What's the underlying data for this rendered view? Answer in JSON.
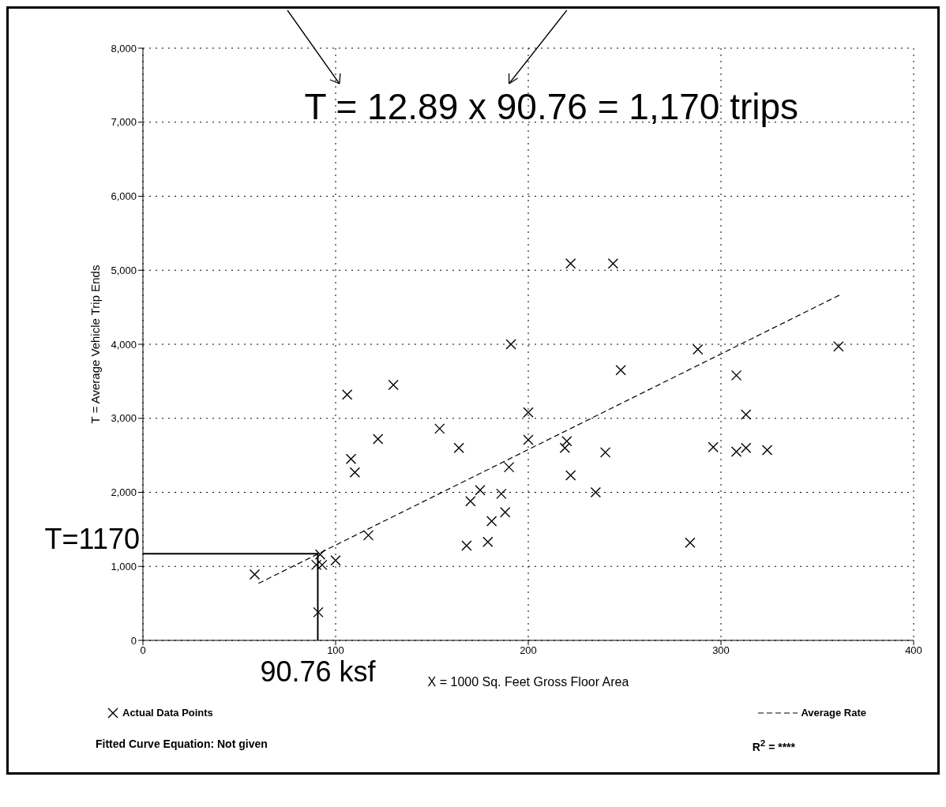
{
  "chart_data": {
    "type": "scatter",
    "xlabel": "X = 1000 Sq. Feet Gross Floor Area",
    "ylabel": "T = Average Vehicle Trip Ends",
    "xlim": [
      0,
      400
    ],
    "xticks": [
      0,
      100,
      200,
      300,
      400
    ],
    "ylim": [
      0,
      8000
    ],
    "yticks": [
      0,
      {
        "value": 1000,
        "label": "1,000"
      },
      {
        "value": 2000,
        "label": "2,000"
      },
      {
        "value": 3000,
        "label": "3,000"
      },
      {
        "value": 4000,
        "label": "4,000"
      },
      {
        "value": 5000,
        "label": "5,000"
      },
      {
        "value": 6000,
        "label": "6,000"
      },
      {
        "value": 7000,
        "label": "7,000"
      },
      {
        "value": 8000,
        "label": "8,000"
      }
    ],
    "grid": true,
    "legend": "bottom",
    "marker": "cross",
    "series": [
      {
        "name": "Actual Data Points",
        "color": "#000000",
        "x": [
          191,
          130,
          106,
          154,
          122,
          164,
          108,
          110,
          190,
          175,
          186,
          170,
          188,
          181,
          179,
          168,
          117,
          100,
          92,
          90,
          93,
          58,
          91,
          222,
          244,
          288,
          248,
          308,
          200,
          313,
          200,
          220,
          219,
          240,
          296,
          308,
          313,
          324,
          222,
          235,
          284,
          361
        ],
        "values": [
          4000,
          3450,
          3320,
          2860,
          2720,
          2600,
          2450,
          2270,
          2340,
          2030,
          1980,
          1880,
          1730,
          1610,
          1330,
          1280,
          1420,
          1080,
          1160,
          1020,
          1020,
          890,
          380,
          5090,
          5090,
          3930,
          3650,
          3580,
          3080,
          3050,
          2710,
          2690,
          2600,
          2540,
          2610,
          2550,
          2600,
          2570,
          2230,
          2000,
          1320,
          3970
        ]
      },
      {
        "name": "Average Rate",
        "type": "line",
        "color": "#000000",
        "line_style": "dashed",
        "marker": "none",
        "x": [
          60,
          362
        ],
        "values": [
          770,
          4670
        ]
      },
      {
        "type": "line",
        "color": "#000000",
        "line_style": "solid",
        "marker": "none",
        "x": [
          0,
          90.76,
          90.76
        ],
        "values": [
          1170,
          1170,
          0
        ]
      }
    ],
    "annotations": [
      "T = 12.89 x 90.76 = 1,170 trips",
      {
        "text": "T=1170",
        "x": 0,
        "y": 1170
      },
      {
        "text": "90.76 ksf",
        "x": 90.76,
        "y": 0
      },
      "Fitted Curve Equation:  Not given",
      "R$^{2}$ = ****"
    ]
  }
}
